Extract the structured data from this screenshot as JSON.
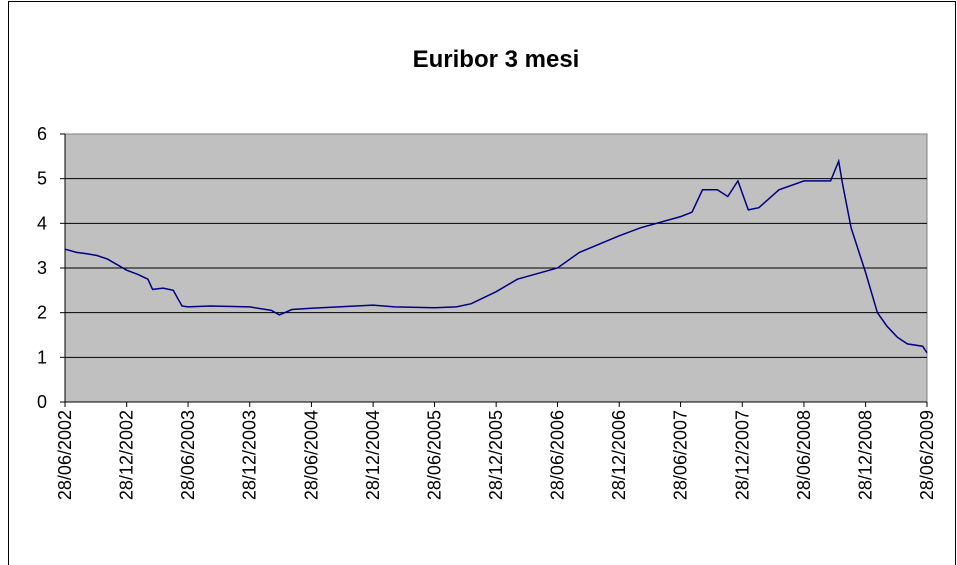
{
  "chart_data": {
    "type": "line",
    "title": "Euribor 3 mesi",
    "x": [
      "28/06/2002",
      "01/08/2002",
      "01/09/2002",
      "01/10/2002",
      "01/11/2002",
      "28/12/2002",
      "01/02/2003",
      "01/03/2003",
      "15/03/2003",
      "15/04/2003",
      "15/05/2003",
      "10/06/2003",
      "28/06/2003",
      "01/09/2003",
      "28/12/2003",
      "01/03/2004",
      "25/03/2004",
      "01/05/2004",
      "28/06/2004",
      "28/12/2004",
      "01/03/2005",
      "28/06/2005",
      "01/09/2005",
      "15/10/2005",
      "28/12/2005",
      "01/03/2006",
      "28/06/2006",
      "01/09/2006",
      "28/12/2006",
      "01/03/2007",
      "28/06/2007",
      "01/08/2007",
      "01/09/2007",
      "15/10/2007",
      "15/11/2007",
      "15/12/2007",
      "15/01/2008",
      "15/02/2008",
      "15/04/2008",
      "28/06/2008",
      "15/09/2008",
      "09/10/2008",
      "20/10/2008",
      "15/11/2008",
      "28/12/2008",
      "01/02/2009",
      "01/03/2009",
      "01/04/2009",
      "01/05/2009",
      "15/06/2009",
      "28/06/2009"
    ],
    "series": [
      {
        "name": "Euribor 3 mesi",
        "color": "#000080",
        "values": [
          3.42,
          3.35,
          3.32,
          3.28,
          3.2,
          2.95,
          2.85,
          2.75,
          2.52,
          2.55,
          2.5,
          2.15,
          2.13,
          2.15,
          2.13,
          2.05,
          1.95,
          2.07,
          2.1,
          2.17,
          2.13,
          2.11,
          2.13,
          2.2,
          2.47,
          2.75,
          3.0,
          3.35,
          3.72,
          3.9,
          4.15,
          4.25,
          4.75,
          4.75,
          4.6,
          4.95,
          4.3,
          4.35,
          4.75,
          4.95,
          4.95,
          5.39,
          4.9,
          3.9,
          2.9,
          2.0,
          1.7,
          1.45,
          1.3,
          1.25,
          1.1
        ]
      }
    ],
    "xlim": [
      "28/06/2002",
      "28/06/2009"
    ],
    "xticks": [
      "28/06/2002",
      "28/12/2002",
      "28/06/2003",
      "28/12/2003",
      "28/06/2004",
      "28/12/2004",
      "28/06/2005",
      "28/12/2005",
      "28/06/2006",
      "28/12/2006",
      "28/06/2007",
      "28/12/2007",
      "28/06/2008",
      "28/12/2008",
      "28/06/2009"
    ],
    "ylim": [
      0,
      6
    ],
    "yticks": [
      0,
      1,
      2,
      3,
      4,
      5,
      6
    ],
    "grid": true
  }
}
